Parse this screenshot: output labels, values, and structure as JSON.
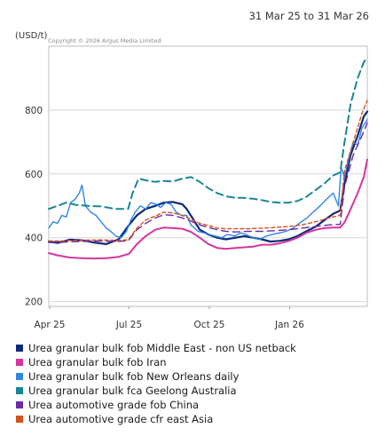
{
  "header": {
    "date_range": "31 Mar 25 to 31 Mar 26",
    "unit": "(USD/t)",
    "copyright": "Copyright © 2026 Argus Media Limited"
  },
  "chart_data": {
    "type": "line",
    "ylabel": "(USD/t)",
    "ylim": [
      185,
      1000
    ],
    "yticks": [
      200,
      400,
      600,
      800
    ],
    "xlim": [
      "2025-03-31",
      "2026-03-31"
    ],
    "xticks": [
      {
        "date": "2025-04-01",
        "label": "Apr 25"
      },
      {
        "date": "2025-07-01",
        "label": "Jul 25"
      },
      {
        "date": "2025-10-01",
        "label": "Oct 25"
      },
      {
        "date": "2026-01-01",
        "label": "Jan 26"
      }
    ],
    "grid": true,
    "legend_position": "bottom",
    "series": [
      {
        "name": "Urea granular bulk fob Middle East - non US netback",
        "color": "#0d2a7a",
        "dash": "",
        "width": 2.2,
        "points": [
          [
            "2025-03-31",
            388
          ],
          [
            "2025-04-10",
            384
          ],
          [
            "2025-04-24",
            394
          ],
          [
            "2025-05-08",
            392
          ],
          [
            "2025-05-22",
            385
          ],
          [
            "2025-06-05",
            380
          ],
          [
            "2025-06-19",
            395
          ],
          [
            "2025-07-01",
            440
          ],
          [
            "2025-07-10",
            470
          ],
          [
            "2025-07-20",
            490
          ],
          [
            "2025-07-31",
            500
          ],
          [
            "2025-08-10",
            510
          ],
          [
            "2025-08-20",
            512
          ],
          [
            "2025-08-31",
            505
          ],
          [
            "2025-09-05",
            490
          ],
          [
            "2025-09-12",
            460
          ],
          [
            "2025-09-20",
            425
          ],
          [
            "2025-09-30",
            410
          ],
          [
            "2025-10-10",
            400
          ],
          [
            "2025-10-20",
            395
          ],
          [
            "2025-10-31",
            400
          ],
          [
            "2025-11-10",
            405
          ],
          [
            "2025-11-20",
            400
          ],
          [
            "2025-11-30",
            395
          ],
          [
            "2025-12-10",
            388
          ],
          [
            "2025-12-20",
            390
          ],
          [
            "2025-12-31",
            395
          ],
          [
            "2026-01-10",
            405
          ],
          [
            "2026-01-20",
            420
          ],
          [
            "2026-01-31",
            435
          ],
          [
            "2026-02-10",
            455
          ],
          [
            "2026-02-20",
            475
          ],
          [
            "2026-02-28",
            485
          ],
          [
            "2026-03-05",
            570
          ],
          [
            "2026-03-12",
            660
          ],
          [
            "2026-03-20",
            720
          ],
          [
            "2026-03-27",
            780
          ],
          [
            "2026-03-31",
            795
          ]
        ]
      },
      {
        "name": "Urea granular bulk fob Iran",
        "color": "#d6349f",
        "dash": "",
        "width": 2,
        "points": [
          [
            "2025-03-31",
            352
          ],
          [
            "2025-04-10",
            345
          ],
          [
            "2025-04-24",
            338
          ],
          [
            "2025-05-08",
            336
          ],
          [
            "2025-05-22",
            335
          ],
          [
            "2025-06-05",
            336
          ],
          [
            "2025-06-19",
            340
          ],
          [
            "2025-07-01",
            350
          ],
          [
            "2025-07-10",
            380
          ],
          [
            "2025-07-20",
            405
          ],
          [
            "2025-07-31",
            425
          ],
          [
            "2025-08-10",
            432
          ],
          [
            "2025-08-20",
            430
          ],
          [
            "2025-08-31",
            428
          ],
          [
            "2025-09-10",
            418
          ],
          [
            "2025-09-20",
            400
          ],
          [
            "2025-09-30",
            380
          ],
          [
            "2025-10-10",
            368
          ],
          [
            "2025-10-20",
            365
          ],
          [
            "2025-10-31",
            368
          ],
          [
            "2025-11-10",
            370
          ],
          [
            "2025-11-20",
            372
          ],
          [
            "2025-11-30",
            378
          ],
          [
            "2025-12-10",
            378
          ],
          [
            "2025-12-20",
            382
          ],
          [
            "2025-12-31",
            390
          ],
          [
            "2026-01-10",
            400
          ],
          [
            "2026-01-20",
            415
          ],
          [
            "2026-01-31",
            425
          ],
          [
            "2026-02-10",
            430
          ],
          [
            "2026-02-20",
            432
          ],
          [
            "2026-02-28",
            432
          ],
          [
            "2026-03-05",
            448
          ],
          [
            "2026-03-12",
            490
          ],
          [
            "2026-03-20",
            540
          ],
          [
            "2026-03-27",
            590
          ],
          [
            "2026-03-31",
            645
          ]
        ]
      },
      {
        "name": "Urea granular bulk fob New Orleans daily",
        "color": "#2f86e8",
        "dash": "",
        "width": 1.4,
        "points": [
          [
            "2025-03-31",
            430
          ],
          [
            "2025-04-05",
            450
          ],
          [
            "2025-04-10",
            445
          ],
          [
            "2025-04-15",
            470
          ],
          [
            "2025-04-20",
            465
          ],
          [
            "2025-04-25",
            510
          ],
          [
            "2025-04-30",
            520
          ],
          [
            "2025-05-05",
            540
          ],
          [
            "2025-05-08",
            565
          ],
          [
            "2025-05-12",
            500
          ],
          [
            "2025-05-18",
            480
          ],
          [
            "2025-05-24",
            470
          ],
          [
            "2025-05-30",
            450
          ],
          [
            "2025-06-05",
            430
          ],
          [
            "2025-06-10",
            420
          ],
          [
            "2025-06-16",
            405
          ],
          [
            "2025-06-22",
            400
          ],
          [
            "2025-06-28",
            420
          ],
          [
            "2025-07-03",
            455
          ],
          [
            "2025-07-08",
            480
          ],
          [
            "2025-07-14",
            500
          ],
          [
            "2025-07-20",
            490
          ],
          [
            "2025-07-26",
            510
          ],
          [
            "2025-08-01",
            505
          ],
          [
            "2025-08-06",
            495
          ],
          [
            "2025-08-12",
            510
          ],
          [
            "2025-08-18",
            505
          ],
          [
            "2025-08-24",
            480
          ],
          [
            "2025-08-30",
            470
          ],
          [
            "2025-09-05",
            470
          ],
          [
            "2025-09-10",
            440
          ],
          [
            "2025-09-18",
            420
          ],
          [
            "2025-09-25",
            415
          ],
          [
            "2025-10-01",
            410
          ],
          [
            "2025-10-08",
            405
          ],
          [
            "2025-10-15",
            400
          ],
          [
            "2025-10-22",
            410
          ],
          [
            "2025-10-30",
            405
          ],
          [
            "2025-11-06",
            415
          ],
          [
            "2025-11-12",
            410
          ],
          [
            "2025-11-20",
            400
          ],
          [
            "2025-11-28",
            395
          ],
          [
            "2025-12-05",
            405
          ],
          [
            "2025-12-12",
            410
          ],
          [
            "2025-12-20",
            415
          ],
          [
            "2025-12-28",
            420
          ],
          [
            "2026-01-05",
            430
          ],
          [
            "2026-01-12",
            445
          ],
          [
            "2026-01-20",
            460
          ],
          [
            "2026-01-28",
            480
          ],
          [
            "2026-02-05",
            500
          ],
          [
            "2026-02-12",
            520
          ],
          [
            "2026-02-20",
            540
          ],
          [
            "2026-02-26",
            500
          ],
          [
            "2026-03-01",
            620
          ],
          [
            "2026-03-05",
            590
          ],
          [
            "2026-03-10",
            650
          ],
          [
            "2026-03-15",
            700
          ],
          [
            "2026-03-20",
            690
          ],
          [
            "2026-03-25",
            745
          ],
          [
            "2026-03-31",
            770
          ]
        ]
      },
      {
        "name": "Urea granular bulk fca Geelong Australia",
        "color": "#1a8596",
        "dash": "8,5",
        "width": 2,
        "points": [
          [
            "2025-03-31",
            490
          ],
          [
            "2025-04-10",
            500
          ],
          [
            "2025-04-20",
            510
          ],
          [
            "2025-05-01",
            503
          ],
          [
            "2025-05-15",
            500
          ],
          [
            "2025-05-31",
            498
          ],
          [
            "2025-06-15",
            490
          ],
          [
            "2025-06-30",
            490
          ],
          [
            "2025-07-05",
            540
          ],
          [
            "2025-07-12",
            585
          ],
          [
            "2025-07-20",
            580
          ],
          [
            "2025-07-31",
            575
          ],
          [
            "2025-08-10",
            578
          ],
          [
            "2025-08-20",
            576
          ],
          [
            "2025-08-31",
            585
          ],
          [
            "2025-09-10",
            590
          ],
          [
            "2025-09-20",
            575
          ],
          [
            "2025-09-30",
            555
          ],
          [
            "2025-10-10",
            540
          ],
          [
            "2025-10-20",
            530
          ],
          [
            "2025-10-31",
            525
          ],
          [
            "2025-11-10",
            525
          ],
          [
            "2025-11-20",
            522
          ],
          [
            "2025-11-30",
            518
          ],
          [
            "2025-12-10",
            512
          ],
          [
            "2025-12-20",
            510
          ],
          [
            "2025-12-31",
            510
          ],
          [
            "2026-01-10",
            515
          ],
          [
            "2026-01-20",
            528
          ],
          [
            "2026-01-31",
            550
          ],
          [
            "2026-02-10",
            570
          ],
          [
            "2026-02-20",
            595
          ],
          [
            "2026-02-28",
            605
          ],
          [
            "2026-03-05",
            700
          ],
          [
            "2026-03-12",
            820
          ],
          [
            "2026-03-20",
            900
          ],
          [
            "2026-03-27",
            950
          ],
          [
            "2026-03-31",
            965
          ]
        ]
      },
      {
        "name": "Urea automotive grade fob China",
        "color": "#6b2aa8",
        "dash": "8,5",
        "width": 1.4,
        "points": [
          [
            "2025-03-31",
            385
          ],
          [
            "2025-04-10",
            385
          ],
          [
            "2025-04-30",
            388
          ],
          [
            "2025-05-31",
            390
          ],
          [
            "2025-06-15",
            388
          ],
          [
            "2025-06-30",
            390
          ],
          [
            "2025-07-10",
            425
          ],
          [
            "2025-07-20",
            445
          ],
          [
            "2025-07-31",
            462
          ],
          [
            "2025-08-10",
            472
          ],
          [
            "2025-08-20",
            470
          ],
          [
            "2025-08-31",
            462
          ],
          [
            "2025-09-10",
            452
          ],
          [
            "2025-09-20",
            440
          ],
          [
            "2025-09-30",
            432
          ],
          [
            "2025-10-10",
            425
          ],
          [
            "2025-10-20",
            420
          ],
          [
            "2025-10-31",
            418
          ],
          [
            "2025-11-15",
            420
          ],
          [
            "2025-11-30",
            420
          ],
          [
            "2025-12-15",
            422
          ],
          [
            "2025-12-31",
            425
          ],
          [
            "2026-01-15",
            430
          ],
          [
            "2026-01-31",
            435
          ],
          [
            "2026-02-15",
            440
          ],
          [
            "2026-02-28",
            442
          ],
          [
            "2026-03-05",
            560
          ],
          [
            "2026-03-15",
            660
          ],
          [
            "2026-03-25",
            720
          ],
          [
            "2026-03-31",
            760
          ]
        ]
      },
      {
        "name": "Urea automotive grade cfr east Asia",
        "color": "#d4521c",
        "dash": "4,3",
        "width": 1.4,
        "points": [
          [
            "2025-03-31",
            390
          ],
          [
            "2025-04-15",
            390
          ],
          [
            "2025-04-30",
            392
          ],
          [
            "2025-05-31",
            393
          ],
          [
            "2025-06-15",
            392
          ],
          [
            "2025-06-30",
            393
          ],
          [
            "2025-07-10",
            430
          ],
          [
            "2025-07-20",
            455
          ],
          [
            "2025-07-31",
            468
          ],
          [
            "2025-08-10",
            480
          ],
          [
            "2025-08-20",
            478
          ],
          [
            "2025-08-31",
            470
          ],
          [
            "2025-09-10",
            458
          ],
          [
            "2025-09-20",
            445
          ],
          [
            "2025-09-30",
            438
          ],
          [
            "2025-10-10",
            430
          ],
          [
            "2025-10-20",
            428
          ],
          [
            "2025-10-31",
            428
          ],
          [
            "2025-11-15",
            428
          ],
          [
            "2025-11-30",
            430
          ],
          [
            "2025-12-15",
            432
          ],
          [
            "2025-12-31",
            435
          ],
          [
            "2026-01-15",
            440
          ],
          [
            "2026-01-31",
            450
          ],
          [
            "2026-02-15",
            462
          ],
          [
            "2026-02-28",
            470
          ],
          [
            "2026-03-05",
            610
          ],
          [
            "2026-03-15",
            700
          ],
          [
            "2026-03-25",
            790
          ],
          [
            "2026-03-31",
            830
          ]
        ]
      }
    ]
  }
}
